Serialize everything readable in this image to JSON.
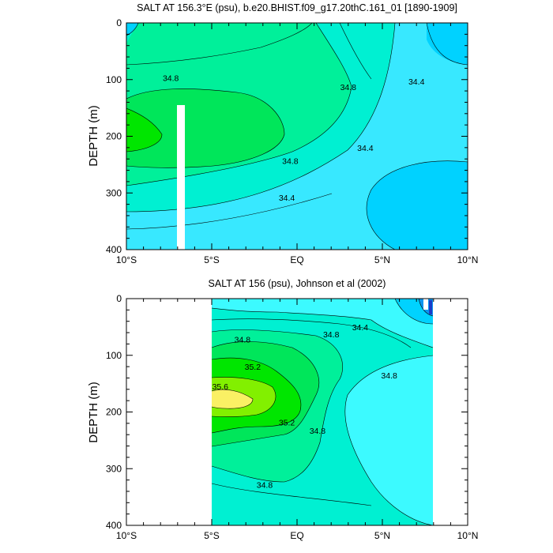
{
  "chart_data": [
    {
      "type": "contour",
      "title": "SALT AT 156.3°E (psu), b.e20.BHIST.f09_g17.20thC.161_01 [1890-1909]",
      "ylabel": "DEPTH (m)",
      "xlim": [
        -10,
        10
      ],
      "ylim": [
        0,
        400
      ],
      "y_inverted": true,
      "x_tick_labels": [
        "10°S",
        "5°S",
        "EQ",
        "5°N",
        "10°N"
      ],
      "y_tick_labels": [
        "0",
        "100",
        "200",
        "300",
        "400"
      ],
      "contour_interval": 0.2,
      "contour_labels": [
        {
          "text": "34.8",
          "x": -7.4,
          "depth": 97
        },
        {
          "text": "34.8",
          "x": 3.0,
          "depth": 113
        },
        {
          "text": "34.4",
          "x": 7.0,
          "depth": 103
        },
        {
          "text": "34.8",
          "x": -0.4,
          "depth": 243
        },
        {
          "text": "34.4",
          "x": 4.0,
          "depth": 220
        },
        {
          "text": "34.4",
          "x": -0.6,
          "depth": 308
        }
      ],
      "no_data_band": {
        "x": [
          -3.3,
          -2.8
        ],
        "depth": [
          145,
          400
        ]
      },
      "fills": [
        {
          "value": 34.2,
          "color": "#00d2ff"
        },
        {
          "value": 34.4,
          "color": "#38e8ff"
        },
        {
          "value": 34.6,
          "color": "#00f0d2"
        },
        {
          "value": 34.8,
          "color": "#00f09a"
        },
        {
          "value": 35.0,
          "color": "#00e65a"
        },
        {
          "value": 35.2,
          "color": "#00e600"
        }
      ]
    },
    {
      "type": "contour",
      "title": "SALT AT 156 (psu), Johnson et al (2002)",
      "ylabel": "DEPTH (m)",
      "xlim": [
        -10,
        10
      ],
      "ylim": [
        0,
        400
      ],
      "y_inverted": true,
      "data_x_range": [
        -5,
        8
      ],
      "x_tick_labels": [
        "10°S",
        "5°S",
        "EQ",
        "5°N",
        "10°N"
      ],
      "y_tick_labels": [
        "0",
        "100",
        "200",
        "300",
        "400"
      ],
      "contour_interval": 0.2,
      "contour_labels": [
        {
          "text": "34.8",
          "x": -3.2,
          "depth": 72
        },
        {
          "text": "34.4",
          "x": 3.7,
          "depth": 50
        },
        {
          "text": "34.8",
          "x": 2.0,
          "depth": 63
        },
        {
          "text": "35.2",
          "x": -2.6,
          "depth": 120
        },
        {
          "text": "34.8",
          "x": 5.4,
          "depth": 135
        },
        {
          "text": "35.6",
          "x": -4.5,
          "depth": 155
        },
        {
          "text": "35.2",
          "x": -0.6,
          "depth": 218
        },
        {
          "text": "34.8",
          "x": 1.2,
          "depth": 233
        },
        {
          "text": "34.8",
          "x": -1.9,
          "depth": 328
        }
      ],
      "fills": [
        {
          "value": 33.6,
          "color": "#1a3cc8"
        },
        {
          "value": 34.0,
          "color": "#0a96f0"
        },
        {
          "value": 34.2,
          "color": "#00d2ff"
        },
        {
          "value": 34.4,
          "color": "#3cfaff"
        },
        {
          "value": 34.6,
          "color": "#00f0d2"
        },
        {
          "value": 34.8,
          "color": "#00f09a"
        },
        {
          "value": 35.0,
          "color": "#00e65a"
        },
        {
          "value": 35.2,
          "color": "#00e600"
        },
        {
          "value": 35.4,
          "color": "#82f000"
        },
        {
          "value": 35.6,
          "color": "#faf064"
        }
      ]
    }
  ]
}
